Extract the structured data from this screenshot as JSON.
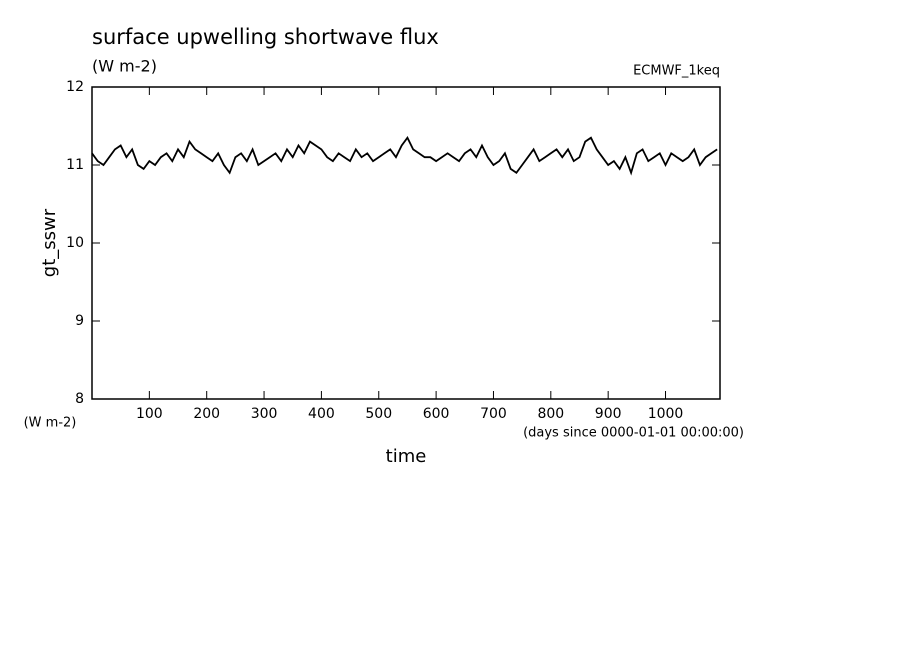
{
  "chart_data": {
    "type": "line",
    "title": "surface upwelling shortwave flux",
    "subtitle": "(W m-2)",
    "source": "ECMWF_1keq",
    "ylabel": "gt_sswr",
    "y_units": "(W m-2)",
    "xlabel": "time",
    "x_units": "(days since 0000-01-01 00:00:00)",
    "color": "#000000",
    "xlim": [
      0,
      1095
    ],
    "ylim": [
      8,
      12
    ],
    "xticks": [
      100,
      200,
      300,
      400,
      500,
      600,
      700,
      800,
      900,
      1000
    ],
    "yticks": [
      8,
      9,
      10,
      11,
      12
    ],
    "x": [
      0,
      10,
      20,
      30,
      40,
      50,
      60,
      70,
      80,
      90,
      100,
      110,
      120,
      130,
      140,
      150,
      160,
      170,
      180,
      190,
      200,
      210,
      220,
      230,
      240,
      250,
      260,
      270,
      280,
      290,
      300,
      310,
      320,
      330,
      340,
      350,
      360,
      370,
      380,
      390,
      400,
      410,
      420,
      430,
      440,
      450,
      460,
      470,
      480,
      490,
      500,
      510,
      520,
      530,
      540,
      550,
      560,
      570,
      580,
      590,
      600,
      610,
      620,
      630,
      640,
      650,
      660,
      670,
      680,
      690,
      700,
      710,
      720,
      730,
      740,
      750,
      760,
      770,
      780,
      790,
      800,
      810,
      820,
      830,
      840,
      850,
      860,
      870,
      880,
      890,
      900,
      910,
      920,
      930,
      940,
      950,
      960,
      970,
      980,
      990,
      1000,
      1010,
      1020,
      1030,
      1040,
      1050,
      1060,
      1070,
      1080,
      1090
    ],
    "values": [
      11.15,
      11.05,
      11.0,
      11.1,
      11.2,
      11.25,
      11.1,
      11.2,
      11.0,
      10.95,
      11.05,
      11.0,
      11.1,
      11.15,
      11.05,
      11.2,
      11.1,
      11.3,
      11.2,
      11.15,
      11.1,
      11.05,
      11.15,
      11.0,
      10.9,
      11.1,
      11.15,
      11.05,
      11.2,
      11.0,
      11.05,
      11.1,
      11.15,
      11.05,
      11.2,
      11.1,
      11.25,
      11.15,
      11.3,
      11.25,
      11.2,
      11.1,
      11.05,
      11.15,
      11.1,
      11.05,
      11.2,
      11.1,
      11.15,
      11.05,
      11.1,
      11.15,
      11.2,
      11.1,
      11.25,
      11.35,
      11.2,
      11.15,
      11.1,
      11.1,
      11.05,
      11.1,
      11.15,
      11.1,
      11.05,
      11.15,
      11.2,
      11.1,
      11.25,
      11.1,
      11.0,
      11.05,
      11.15,
      10.95,
      10.9,
      11.0,
      11.1,
      11.2,
      11.05,
      11.1,
      11.15,
      11.2,
      11.1,
      11.2,
      11.05,
      11.1,
      11.3,
      11.35,
      11.2,
      11.1,
      11.0,
      11.05,
      10.95,
      11.1,
      10.9,
      11.15,
      11.2,
      11.05,
      11.1,
      11.15,
      11.0,
      11.15,
      11.1,
      11.05,
      11.1,
      11.2,
      11.0,
      11.1,
      11.15,
      11.2
    ]
  }
}
